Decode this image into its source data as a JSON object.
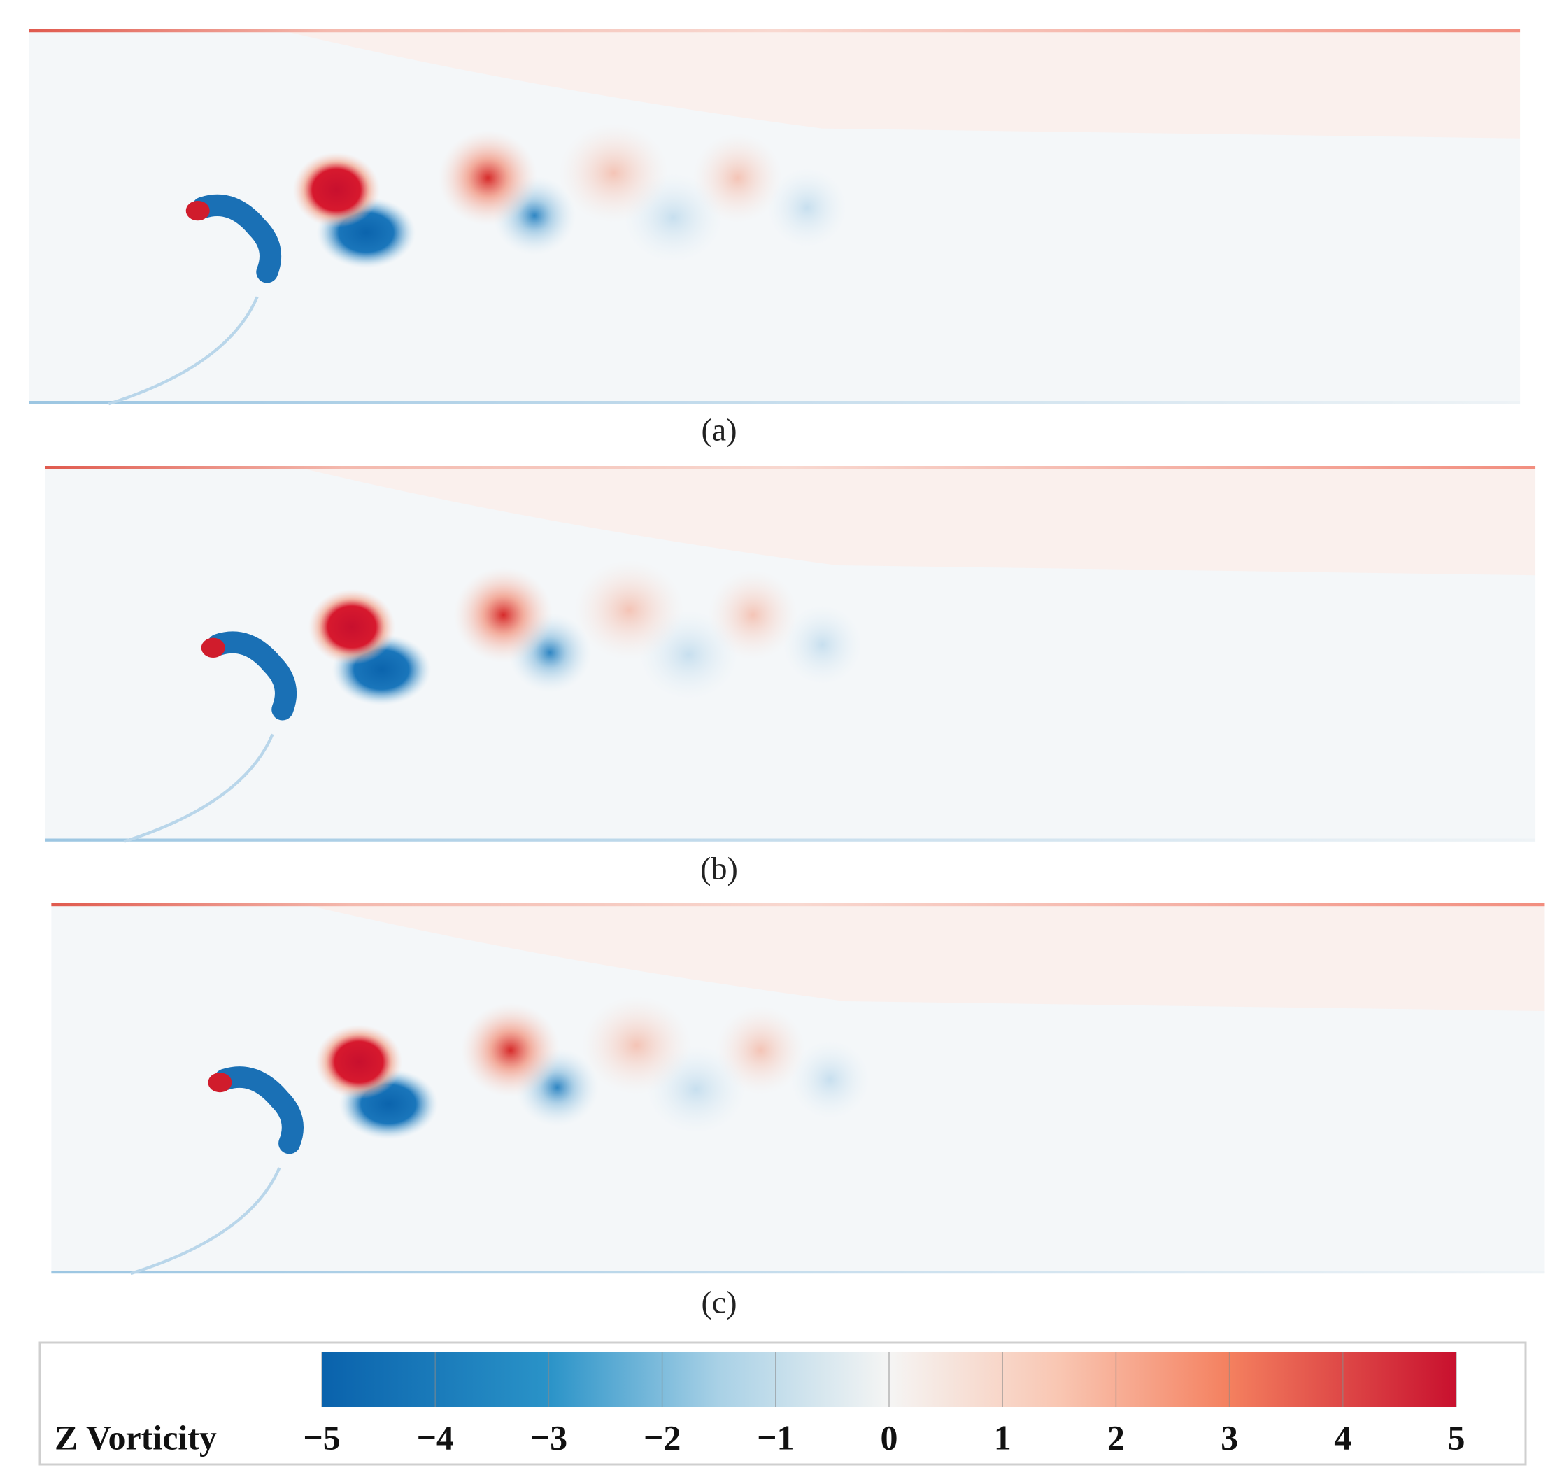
{
  "panels": [
    {
      "label": "(a)"
    },
    {
      "label": "(b)"
    },
    {
      "label": "(c)"
    }
  ],
  "colorbar": {
    "title": "Z Vorticity",
    "range": [
      -5,
      5
    ],
    "ticks": [
      {
        "value": -5,
        "label": "−5"
      },
      {
        "value": -4,
        "label": "−4"
      },
      {
        "value": -3,
        "label": "−3"
      },
      {
        "value": -2,
        "label": "−2"
      },
      {
        "value": -1,
        "label": "−1"
      },
      0,
      1,
      2,
      3,
      4,
      5
    ]
  }
}
